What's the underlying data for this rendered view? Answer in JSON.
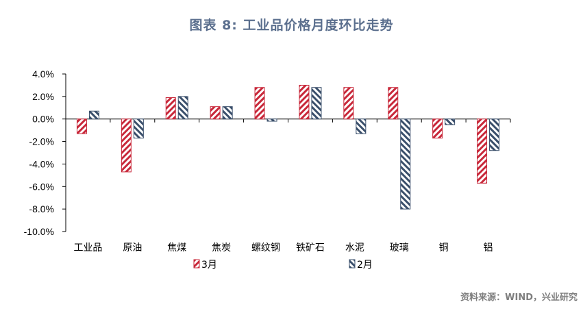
{
  "header": {
    "title": "图表 8:    工业品价格月度环比走势"
  },
  "footer": {
    "source": "资料来源：WIND，兴业研究"
  },
  "colors": {
    "march": "#c8283a",
    "feb": "#3a4f6b"
  },
  "chart_data": {
    "type": "bar",
    "title": "图表 8:    工业品价格月度环比走势",
    "categories": [
      "工业品",
      "原油",
      "焦煤",
      "焦炭",
      "螺纹钢",
      "铁矿石",
      "水泥",
      "玻璃",
      "铜",
      "铝"
    ],
    "series": [
      {
        "name": "3月",
        "pattern": "diagonal-hatch",
        "color": "#c8283a",
        "values": [
          -1.3,
          -4.7,
          1.9,
          1.1,
          2.8,
          3.0,
          2.8,
          2.8,
          -1.7,
          -5.7
        ]
      },
      {
        "name": "2月",
        "pattern": "diagonal-hatch",
        "color": "#3a4f6b",
        "values": [
          0.7,
          -1.7,
          2.0,
          1.1,
          -0.2,
          2.8,
          -1.3,
          -8.0,
          -0.5,
          -2.8
        ]
      }
    ],
    "yticks": [
      "4.0%",
      "2.0%",
      "0.0%",
      "-2.0%",
      "-4.0%",
      "-6.0%",
      "-8.0%",
      "-10.0%"
    ],
    "ylim": [
      -10,
      4
    ],
    "grid": false,
    "legend": "bottom"
  }
}
